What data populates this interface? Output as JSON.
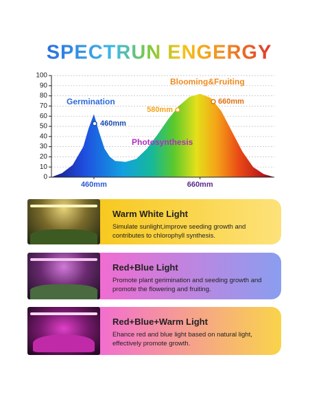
{
  "chart_data": {
    "type": "area",
    "title": "SPECTRUN ENGERGY",
    "x": [
      380,
      400,
      420,
      440,
      450,
      460,
      470,
      480,
      490,
      500,
      520,
      540,
      560,
      580,
      600,
      620,
      640,
      660,
      680,
      700,
      720,
      740,
      760,
      780,
      800
    ],
    "values": [
      0,
      4,
      12,
      30,
      48,
      62,
      44,
      28,
      20,
      16,
      15,
      18,
      28,
      42,
      57,
      70,
      79,
      82,
      78,
      65,
      45,
      25,
      10,
      3,
      0
    ],
    "xlim": [
      380,
      800
    ],
    "ylim": [
      0,
      100
    ],
    "xticks": [
      {
        "value": 460,
        "label": "460mm"
      },
      {
        "value": 660,
        "label": "660mm"
      }
    ],
    "yticks": [
      0,
      10,
      20,
      30,
      40,
      50,
      60,
      70,
      80,
      90,
      100
    ],
    "grid": true,
    "annotations": [
      "Germination",
      "460mm",
      "580mm",
      "Blooming&Fruiting",
      "660mm",
      "Photosynthesis"
    ]
  },
  "panels": [
    {
      "title": "Warm White Light",
      "description": "Simulate sunlight,improve seeding growth and contributes to chlorophyll synthesis."
    },
    {
      "title": "Red+Blue Light",
      "description": "Promote plant gerimination and seeding growth and promote the flowering and fruiting."
    },
    {
      "title": "Red+Blue+Warm Light",
      "description": "Ehance red and blue light based on natural light, effectively promote growth."
    }
  ]
}
